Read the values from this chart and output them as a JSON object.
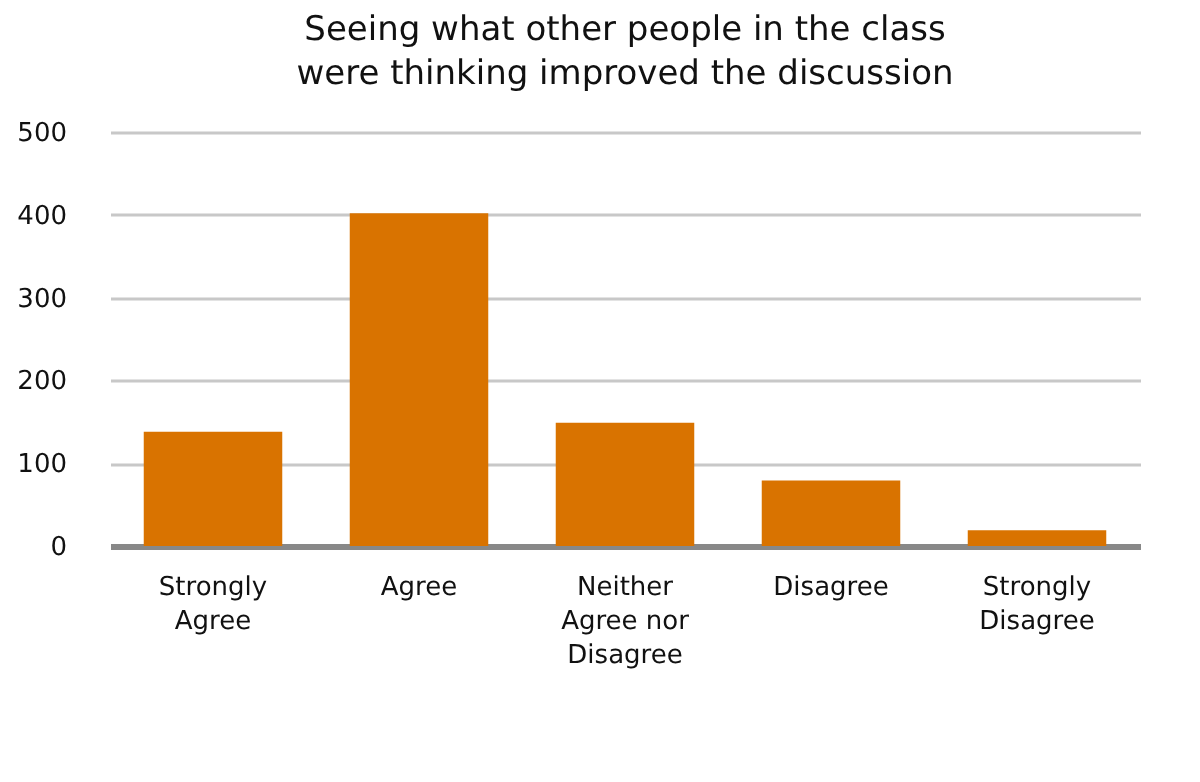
{
  "chart_data": {
    "type": "bar",
    "title": "Seeing what other people in the class were thinking improved the discussion",
    "categories": [
      "Strongly Agree",
      "Agree",
      "Neither Agree nor Disagree",
      "Disagree",
      "Strongly Disagree"
    ],
    "values": [
      138,
      402,
      149,
      79,
      19
    ],
    "color": "#d97300",
    "ylim": [
      0,
      500
    ],
    "yticks": [
      0,
      100,
      200,
      300,
      400,
      500
    ],
    "grid": "y"
  }
}
